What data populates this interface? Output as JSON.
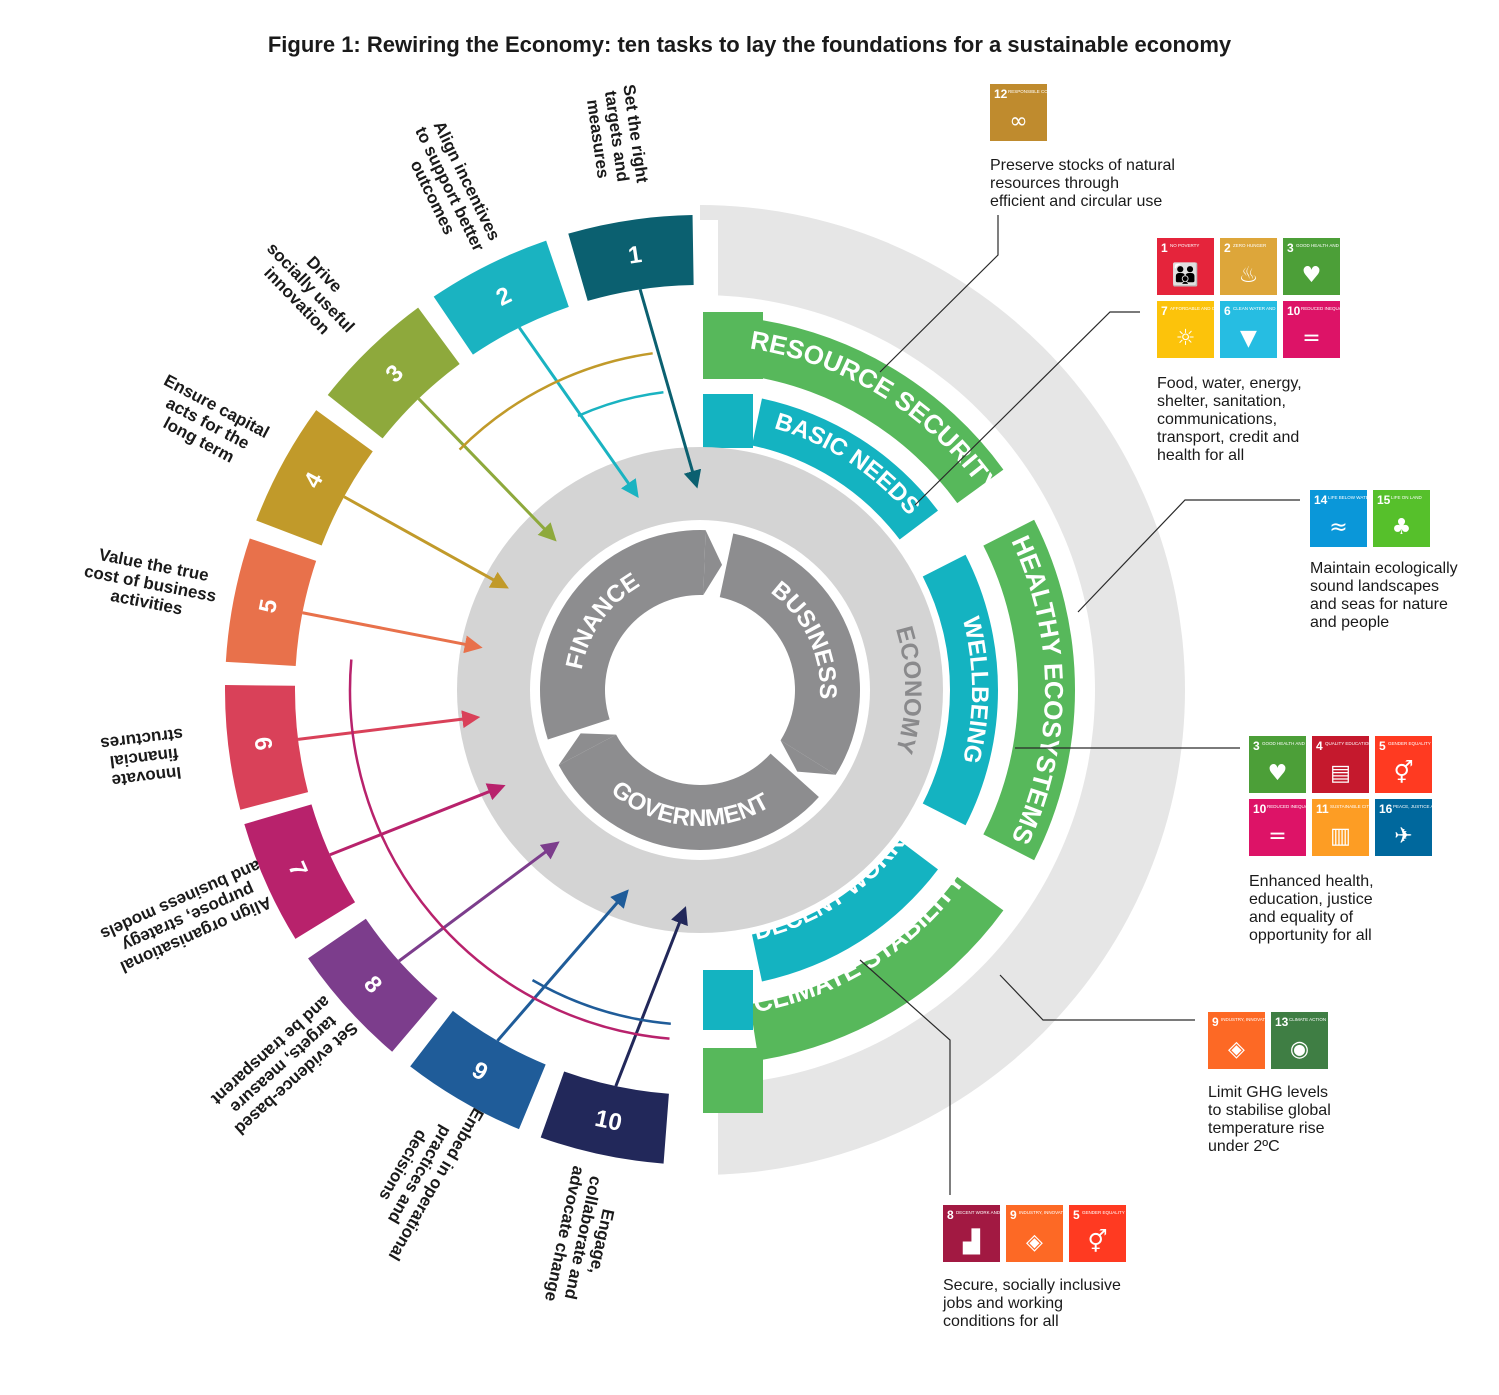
{
  "title": "Figure 1: Rewiring the Economy: ten tasks to lay the foundations for a sustainable economy",
  "core": {
    "segments": [
      "FINANCE",
      "BUSINESS",
      "GOVERNMENT"
    ],
    "ring_label": "ECONOMY"
  },
  "tasks": [
    {
      "number": "1",
      "label": [
        "Set the right",
        "targets and",
        "measures"
      ],
      "color": "#0b6070"
    },
    {
      "number": "2",
      "label": [
        "Align incentives",
        "to support better",
        "outcomes"
      ],
      "color": "#1ab3c1"
    },
    {
      "number": "3",
      "label": [
        "Drive",
        "socially useful",
        "innovation"
      ],
      "color": "#8ea93c"
    },
    {
      "number": "4",
      "label": [
        "Ensure capital",
        "acts for the",
        "long term"
      ],
      "color": "#c19a2a"
    },
    {
      "number": "5",
      "label": [
        "Value the true",
        "cost of business",
        "activities"
      ],
      "color": "#e8714b"
    },
    {
      "number": "6",
      "label": [
        "Innovate",
        "financial",
        "structures"
      ],
      "color": "#d94159"
    },
    {
      "number": "7",
      "label": [
        "Align organisational",
        "purpose, strategy",
        "and business models"
      ],
      "color": "#b8226c"
    },
    {
      "number": "8",
      "label": [
        "Set evidence-based",
        "targets, measure",
        "and be transparent"
      ],
      "color": "#7c3d8c"
    },
    {
      "number": "9",
      "label": [
        "Embed in operational",
        "practices and",
        "decisions"
      ],
      "color": "#1f5c99"
    },
    {
      "number": "10",
      "label": [
        "Engage,",
        "collaborate and",
        "advocate change"
      ],
      "color": "#22285a"
    }
  ],
  "outcomes_inner": [
    "BASIC NEEDS",
    "WELLBEING",
    "DECENT WORK"
  ],
  "outcomes_outer": [
    "RESOURCE SECURITY",
    "HEALTHY ECOSYSTEMS",
    "CLIMATE STABILITY"
  ],
  "colors": {
    "inner_band": "#14b3c1",
    "outer_band": "#57b85b",
    "economy_ring": "#d4d4d4",
    "core": "#8d8d8f",
    "outer_grey": "#e6e6e6"
  },
  "sdg_callouts": [
    {
      "id": "resource",
      "icons": [
        {
          "num": "12",
          "label": "RESPONSIBLE CONSUMPTION AND PRODUCTION",
          "color": "#bf8b2e",
          "glyph": "∞"
        }
      ],
      "text": [
        "Preserve stocks of natural",
        "resources through",
        "efficient and circular use"
      ]
    },
    {
      "id": "basic",
      "icons": [
        {
          "num": "1",
          "label": "NO POVERTY",
          "color": "#e5243b",
          "glyph": "👪"
        },
        {
          "num": "2",
          "label": "ZERO HUNGER",
          "color": "#dda63a",
          "glyph": "♨"
        },
        {
          "num": "3",
          "label": "GOOD HEALTH AND WELL-BEING",
          "color": "#4c9f38",
          "glyph": "♥"
        },
        {
          "num": "7",
          "label": "AFFORDABLE AND CLEAN ENERGY",
          "color": "#fcc30b",
          "glyph": "☼"
        },
        {
          "num": "6",
          "label": "CLEAN WATER AND SANITATION",
          "color": "#26bde2",
          "glyph": "▼"
        },
        {
          "num": "10",
          "label": "REDUCED INEQUALITIES",
          "color": "#dd1367",
          "glyph": "="
        }
      ],
      "text": [
        "Food, water, energy,",
        "shelter, sanitation,",
        "communications,",
        "transport, credit and",
        "health for all"
      ]
    },
    {
      "id": "ecosystems",
      "icons": [
        {
          "num": "14",
          "label": "LIFE BELOW WATER",
          "color": "#0a97d9",
          "glyph": "≈"
        },
        {
          "num": "15",
          "label": "LIFE ON LAND",
          "color": "#56c02b",
          "glyph": "♣"
        }
      ],
      "text": [
        "Maintain ecologically",
        "sound landscapes",
        "and seas for nature",
        "and people"
      ]
    },
    {
      "id": "wellbeing",
      "icons": [
        {
          "num": "3",
          "label": "GOOD HEALTH AND WELL-BEING",
          "color": "#4c9f38",
          "glyph": "♥"
        },
        {
          "num": "4",
          "label": "QUALITY EDUCATION",
          "color": "#c5192d",
          "glyph": "▤"
        },
        {
          "num": "5",
          "label": "GENDER EQUALITY",
          "color": "#ff3a21",
          "glyph": "⚥"
        },
        {
          "num": "10",
          "label": "REDUCED INEQUALITIES",
          "color": "#dd1367",
          "glyph": "="
        },
        {
          "num": "11",
          "label": "SUSTAINABLE CITIES AND COMMUNITIES",
          "color": "#fd9d24",
          "glyph": "▥"
        },
        {
          "num": "16",
          "label": "PEACE, JUSTICE AND STRONG INSTITUTIONS",
          "color": "#00689d",
          "glyph": "✈"
        }
      ],
      "text": [
        "Enhanced health,",
        "education, justice",
        "and equality of",
        "opportunity for all"
      ]
    },
    {
      "id": "climate",
      "icons": [
        {
          "num": "9",
          "label": "INDUSTRY, INNOVATION AND INFRASTRUCTURE",
          "color": "#fd6925",
          "glyph": "◈"
        },
        {
          "num": "13",
          "label": "CLIMATE ACTION",
          "color": "#3f7e44",
          "glyph": "◉"
        }
      ],
      "text": [
        "Limit GHG levels",
        "to stabilise global",
        "temperature rise",
        "under 2ºC"
      ]
    },
    {
      "id": "decent",
      "icons": [
        {
          "num": "8",
          "label": "DECENT WORK AND ECONOMIC GROWTH",
          "color": "#a21942",
          "glyph": "▟"
        },
        {
          "num": "9",
          "label": "INDUSTRY, INNOVATION AND INFRASTRUCTURE",
          "color": "#fd6925",
          "glyph": "◈"
        },
        {
          "num": "5",
          "label": "GENDER EQUALITY",
          "color": "#ff3a21",
          "glyph": "⚥"
        }
      ],
      "text": [
        "Secure, socially inclusive",
        "jobs and working",
        "conditions for all"
      ]
    }
  ]
}
